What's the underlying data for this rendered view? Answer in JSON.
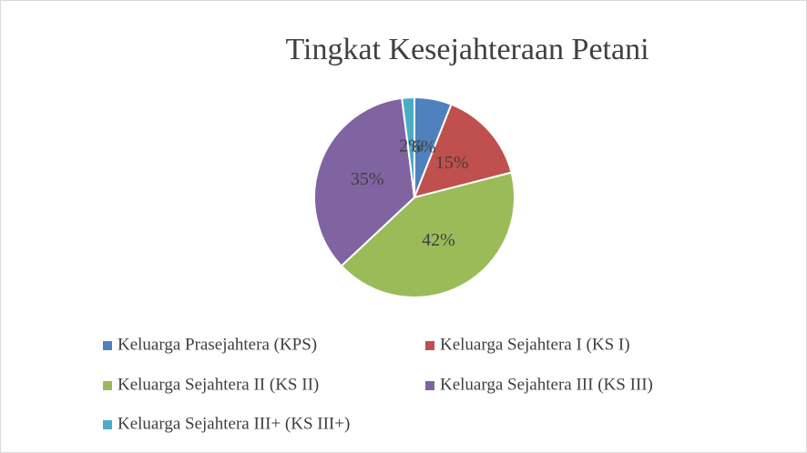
{
  "chart_data": {
    "type": "pie",
    "title": "Tingkat Kesejahteraan Petani",
    "categories": [
      "Keluarga Prasejahtera (KPS)",
      "Keluarga Sejahtera I (KS I)",
      "Keluarga Sejahtera II (KS II)",
      "Keluarga Sejahtera III (KS III)",
      "Keluarga Sejahtera III+ (KS III+)"
    ],
    "values": [
      6,
      15,
      42,
      35,
      2
    ],
    "value_labels": [
      "6%",
      "15%",
      "42%",
      "35%",
      "2%"
    ],
    "colors": [
      "#4f81bd",
      "#c0504d",
      "#9bbb59",
      "#8064a2",
      "#4bacc6"
    ],
    "legend": "bottom"
  }
}
